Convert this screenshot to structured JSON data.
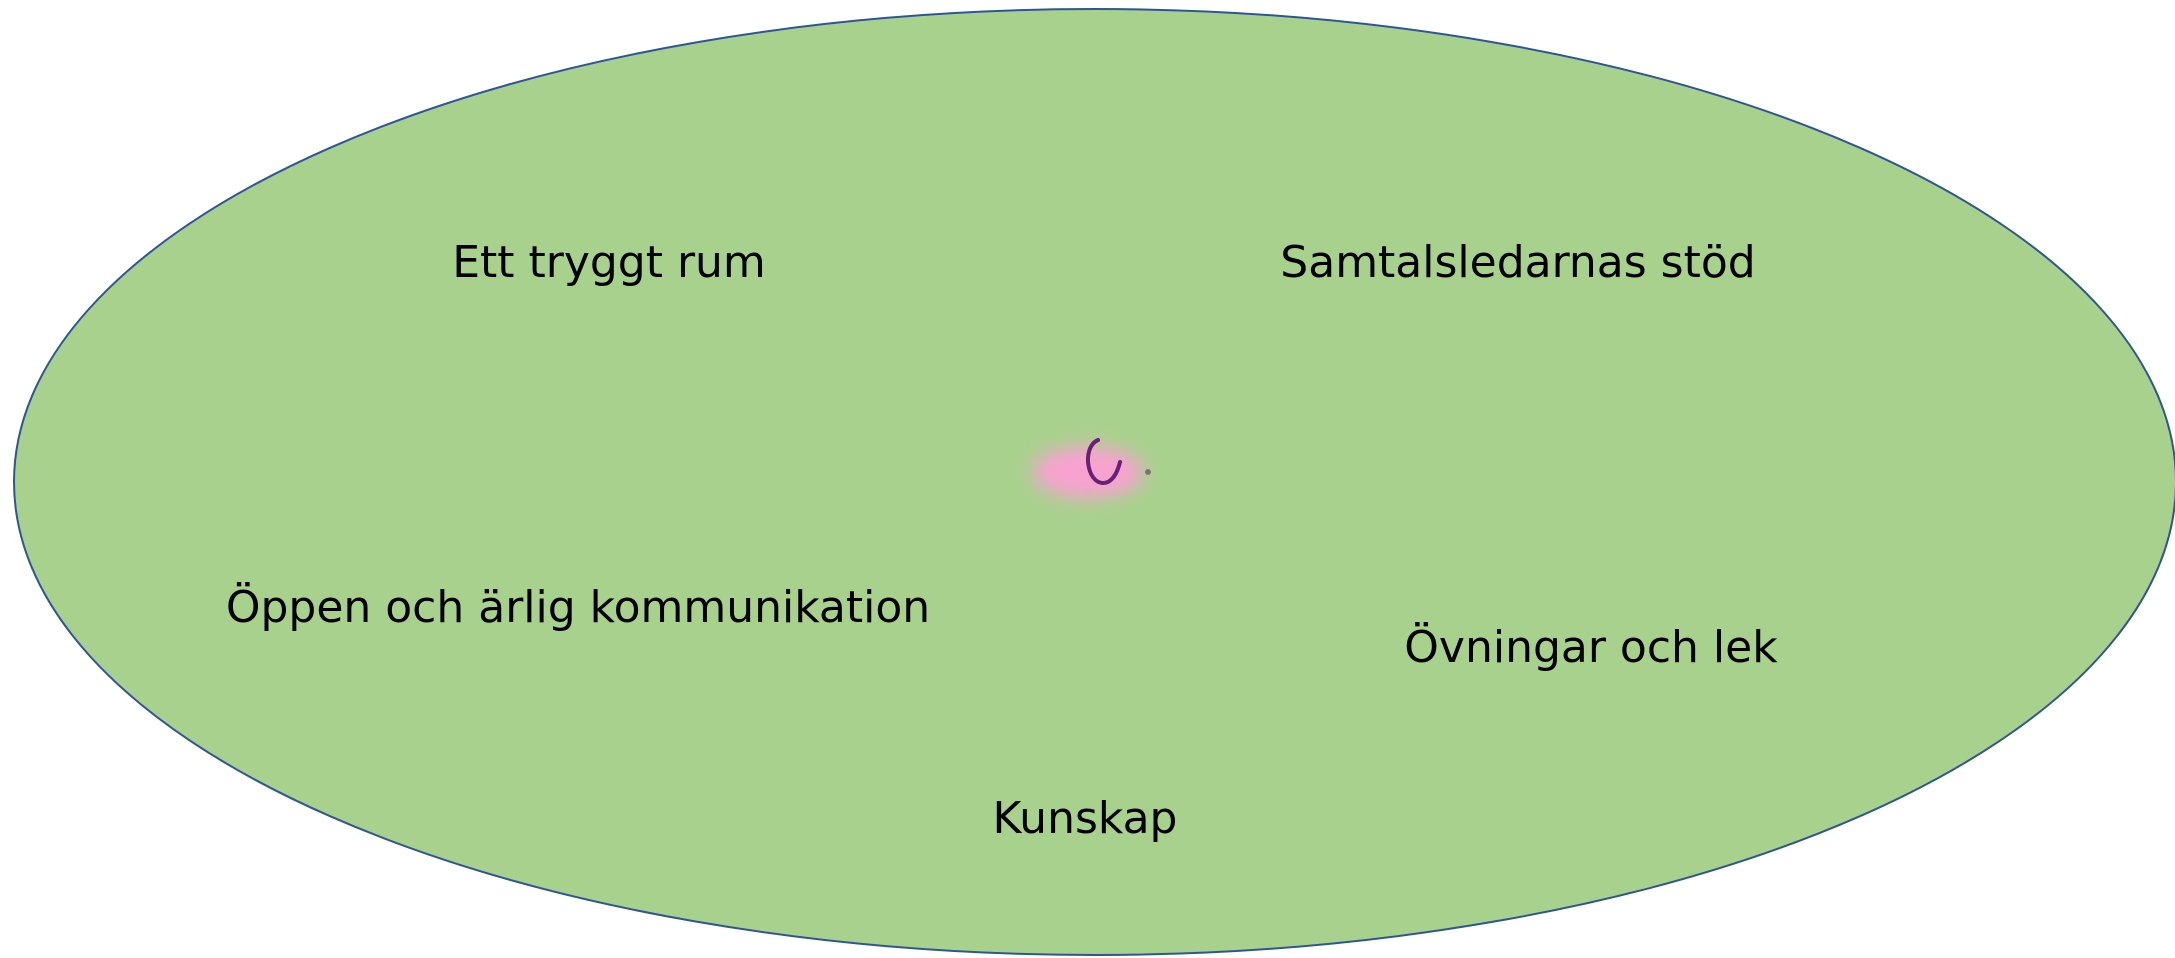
{
  "labels": [
    "Ett tryggt rum",
    "Samtalsledarnas stöd",
    "Öppen och ärlig kommunikation",
    "Övningar och lek",
    "Kunskap"
  ]
}
